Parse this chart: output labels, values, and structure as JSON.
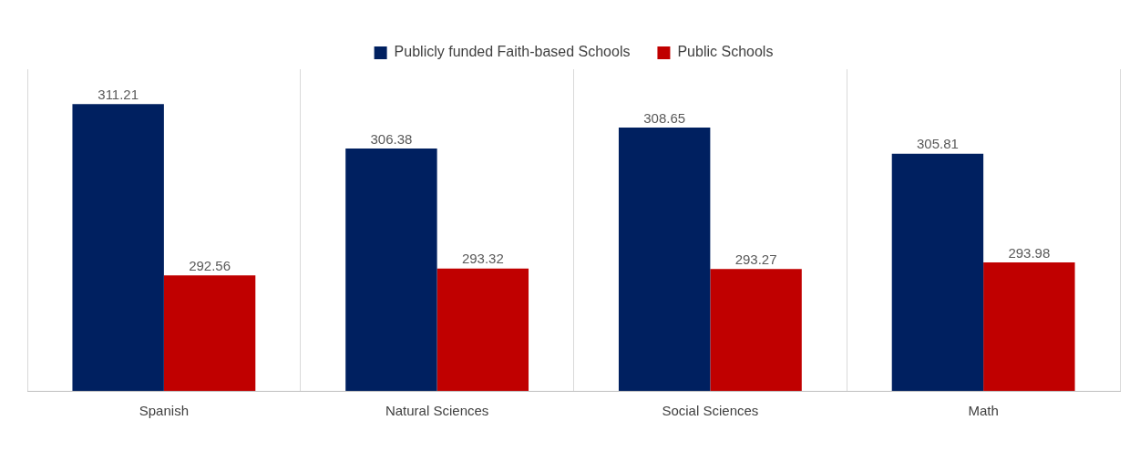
{
  "chart_data": {
    "type": "bar",
    "categories": [
      "Spanish",
      "Natural Sciences",
      "Social Sciences",
      "Math"
    ],
    "series": [
      {
        "name": "Publicly funded Faith-based Schools",
        "color": "#002060",
        "values": [
          311.21,
          306.38,
          308.65,
          305.81
        ]
      },
      {
        "name": "Public Schools",
        "color": "#c00000",
        "values": [
          292.56,
          293.32,
          293.27,
          293.98
        ]
      }
    ],
    "ylim": [
      280,
      315
    ],
    "data_labels": true,
    "grid": "x",
    "legend": "top",
    "tick_labels": "x"
  }
}
